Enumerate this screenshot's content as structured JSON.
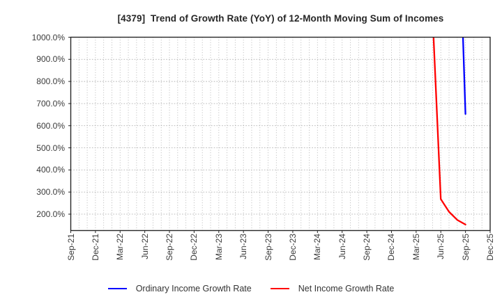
{
  "chart_data": {
    "type": "line",
    "title": "[4379]  Trend of Growth Rate (YoY) of 12-Month Moving Sum of Incomes",
    "xlabel": "",
    "ylabel": "",
    "x_unit": "months since Sep-21",
    "xlim": [
      0,
      51
    ],
    "ylim": [
      126,
      1000
    ],
    "grid": true,
    "minor_x_gridline_every_month": true,
    "legend_position": "bottom-center",
    "y_ticks": [
      {
        "value": 1000,
        "label": "1000.0%"
      },
      {
        "value": 900,
        "label": "900.0%"
      },
      {
        "value": 800,
        "label": "800.0%"
      },
      {
        "value": 700,
        "label": "700.0%"
      },
      {
        "value": 600,
        "label": "600.0%"
      },
      {
        "value": 500,
        "label": "500.0%"
      },
      {
        "value": 400,
        "label": "400.0%"
      },
      {
        "value": 300,
        "label": "300.0%"
      },
      {
        "value": 200,
        "label": "200.0%"
      }
    ],
    "x_ticks": [
      {
        "month": 0,
        "label": "Sep-21"
      },
      {
        "month": 3,
        "label": "Dec-21"
      },
      {
        "month": 6,
        "label": "Mar-22"
      },
      {
        "month": 9,
        "label": "Jun-22"
      },
      {
        "month": 12,
        "label": "Sep-22"
      },
      {
        "month": 15,
        "label": "Dec-22"
      },
      {
        "month": 18,
        "label": "Mar-23"
      },
      {
        "month": 21,
        "label": "Jun-23"
      },
      {
        "month": 24,
        "label": "Sep-23"
      },
      {
        "month": 27,
        "label": "Dec-23"
      },
      {
        "month": 30,
        "label": "Mar-24"
      },
      {
        "month": 33,
        "label": "Jun-24"
      },
      {
        "month": 36,
        "label": "Sep-24"
      },
      {
        "month": 39,
        "label": "Dec-24"
      },
      {
        "month": 42,
        "label": "Mar-25"
      },
      {
        "month": 45,
        "label": "Jun-25"
      },
      {
        "month": 48,
        "label": "Sep-25"
      },
      {
        "month": 51,
        "label": "Dec-25"
      }
    ],
    "series": [
      {
        "name": "Ordinary Income Growth Rate",
        "color": "#0000ff",
        "points": [
          [
            47,
            1800
          ],
          [
            48,
            653
          ]
        ]
      },
      {
        "name": "Net Income Growth Rate",
        "color": "#ff0000",
        "points": [
          [
            44,
            1100
          ],
          [
            45,
            268
          ],
          [
            46,
            211
          ],
          [
            47,
            174
          ],
          [
            48,
            153
          ]
        ]
      }
    ],
    "colors": {
      "frame": "#262626",
      "gridline": "#b0b0b0",
      "tick_label": "#3a3a3a",
      "title": "#262626"
    }
  }
}
